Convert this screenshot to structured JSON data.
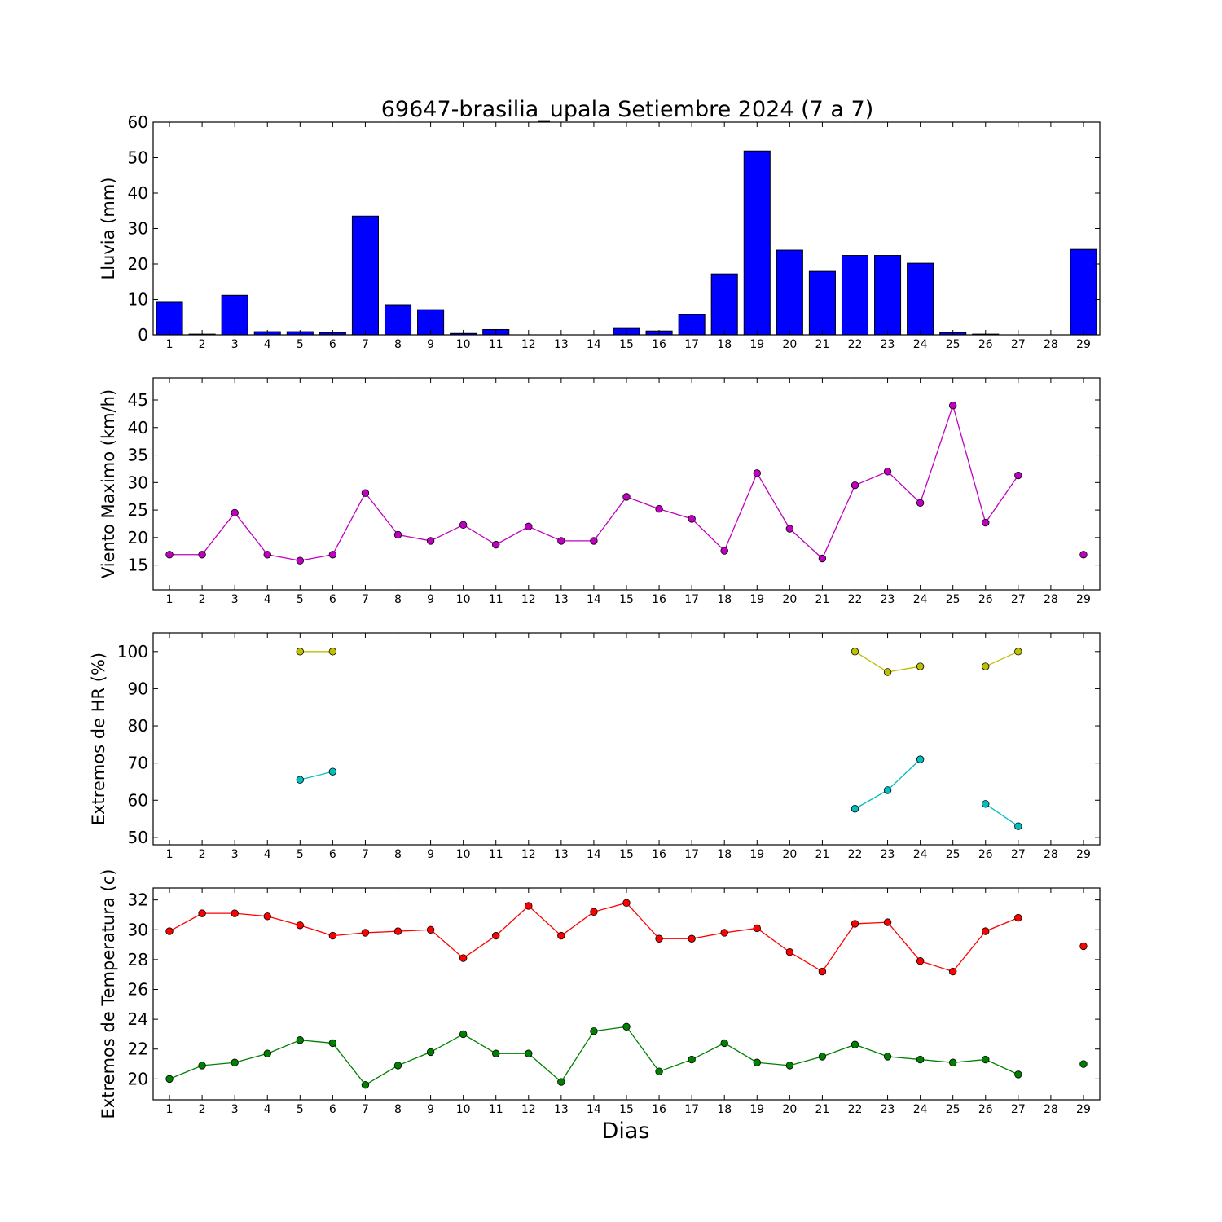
{
  "chart_data": [
    {
      "type": "bar",
      "title": "69647-brasilia_upala Setiembre 2024  (7 a 7)",
      "ylabel": "Lluvia (mm)",
      "categories": [
        "1",
        "2",
        "3",
        "4",
        "5",
        "6",
        "7",
        "8",
        "9",
        "10",
        "11",
        "12",
        "13",
        "14",
        "15",
        "16",
        "17",
        "18",
        "19",
        "20",
        "21",
        "22",
        "23",
        "24",
        "25",
        "26",
        "27",
        "28",
        "29"
      ],
      "values": [
        9.2,
        0.2,
        11.2,
        0.9,
        0.9,
        0.6,
        33.5,
        8.5,
        7.1,
        0.4,
        1.5,
        0,
        0,
        0,
        1.8,
        1.1,
        5.7,
        17.2,
        51.9,
        23.9,
        17.9,
        22.4,
        22.4,
        20.2,
        0.6,
        0.2,
        0,
        0,
        24.1
      ],
      "color": "#0000ff",
      "ylim": [
        0,
        60
      ],
      "yticks": [
        0,
        10,
        20,
        30,
        40,
        50,
        60
      ]
    },
    {
      "type": "line",
      "ylabel": "Viento Maximo (km/h)",
      "categories": [
        "1",
        "2",
        "3",
        "4",
        "5",
        "6",
        "7",
        "8",
        "9",
        "10",
        "11",
        "12",
        "13",
        "14",
        "15",
        "16",
        "17",
        "18",
        "19",
        "20",
        "21",
        "22",
        "23",
        "24",
        "25",
        "26",
        "27",
        "28",
        "29"
      ],
      "series": [
        {
          "color": "#bf00bf",
          "values": [
            16.9,
            16.9,
            24.5,
            16.9,
            15.8,
            16.9,
            28.1,
            20.5,
            19.4,
            22.3,
            18.7,
            22.0,
            19.4,
            19.4,
            27.4,
            25.2,
            23.4,
            17.6,
            31.7,
            21.6,
            16.2,
            29.5,
            32.0,
            26.3,
            44.0,
            22.7,
            31.3,
            null,
            16.9
          ]
        }
      ],
      "ylim": [
        10.5,
        49
      ],
      "yticks": [
        15,
        20,
        25,
        30,
        35,
        40,
        45
      ]
    },
    {
      "type": "line",
      "ylabel": "Extremos de HR (%)",
      "categories": [
        "1",
        "2",
        "3",
        "4",
        "5",
        "6",
        "7",
        "8",
        "9",
        "10",
        "11",
        "12",
        "13",
        "14",
        "15",
        "16",
        "17",
        "18",
        "19",
        "20",
        "21",
        "22",
        "23",
        "24",
        "25",
        "26",
        "27",
        "28",
        "29"
      ],
      "series": [
        {
          "color": "#bfbf00",
          "values": [
            null,
            null,
            null,
            null,
            100,
            100,
            null,
            null,
            null,
            null,
            null,
            null,
            null,
            null,
            null,
            null,
            null,
            null,
            null,
            null,
            null,
            100,
            94.5,
            96,
            null,
            96,
            100,
            null,
            null
          ]
        },
        {
          "color": "#00bfbf",
          "values": [
            null,
            null,
            null,
            null,
            65.5,
            67.7,
            null,
            null,
            null,
            null,
            null,
            null,
            null,
            null,
            null,
            null,
            null,
            null,
            null,
            null,
            null,
            57.7,
            62.7,
            71,
            null,
            59,
            53,
            null,
            null
          ]
        }
      ],
      "ylim": [
        48,
        105
      ],
      "yticks": [
        50,
        60,
        70,
        80,
        90,
        100
      ]
    },
    {
      "type": "line",
      "ylabel": "Extremos de Temperatura (c)",
      "xlabel": "Dias",
      "categories": [
        "1",
        "2",
        "3",
        "4",
        "5",
        "6",
        "7",
        "8",
        "9",
        "10",
        "11",
        "12",
        "13",
        "14",
        "15",
        "16",
        "17",
        "18",
        "19",
        "20",
        "21",
        "22",
        "23",
        "24",
        "25",
        "26",
        "27",
        "28",
        "29"
      ],
      "series": [
        {
          "color": "#ff0000",
          "values": [
            29.9,
            31.1,
            31.1,
            30.9,
            30.3,
            29.6,
            29.8,
            29.9,
            30.0,
            28.1,
            29.6,
            31.6,
            29.6,
            31.2,
            31.8,
            29.4,
            29.4,
            29.8,
            30.1,
            28.5,
            27.2,
            30.4,
            30.5,
            27.9,
            27.2,
            29.9,
            30.8,
            null,
            28.9
          ]
        },
        {
          "color": "#008000",
          "values": [
            20.0,
            20.9,
            21.1,
            21.7,
            22.6,
            22.4,
            19.6,
            20.9,
            21.8,
            23.0,
            21.7,
            21.7,
            19.8,
            23.2,
            23.5,
            20.5,
            21.3,
            22.4,
            21.1,
            20.9,
            21.5,
            22.3,
            21.5,
            21.3,
            21.1,
            21.3,
            20.3,
            null,
            21.0
          ]
        }
      ],
      "ylim": [
        18.6,
        32.8
      ],
      "yticks": [
        20,
        22,
        24,
        26,
        28,
        30,
        32
      ]
    }
  ]
}
